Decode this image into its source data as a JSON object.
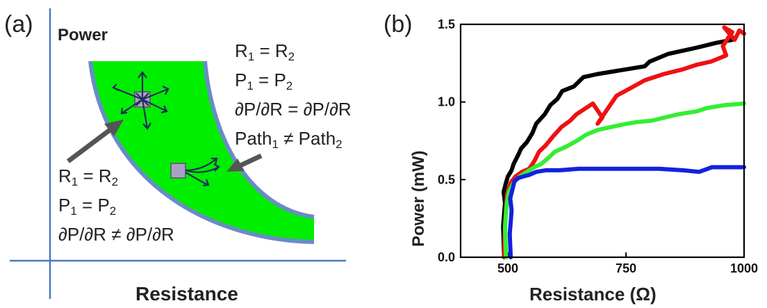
{
  "panel_a": {
    "label": "(a)",
    "ylabel": "Power",
    "xlabel": "Resistance",
    "colors": {
      "region": "#00ee00",
      "border": "#6a8cc4",
      "axis": "#4a78bf",
      "marker": "#a9a0c8",
      "arrow": "#1f2d5a",
      "pointer": "#555555"
    },
    "annotation_top": {
      "line1": "R",
      "sub1a": "1",
      "mid1": " = R",
      "sub1b": "2",
      "line2": "P",
      "sub2a": "1",
      "mid2": " = P",
      "sub2b": "2",
      "line3": "∂P/∂R = ∂P/∂R",
      "line4a": "Path",
      "sub4a": "1",
      "line4b": " ≠ Path",
      "sub4b": "2"
    },
    "annotation_bottom": {
      "line1": "R",
      "sub1a": "1",
      "mid1": " = R",
      "sub1b": "2",
      "line2": "P",
      "sub2a": "1",
      "mid2": " = P",
      "sub2b": "2",
      "line3": "∂P/∂R ≠ ∂P/∂R"
    }
  },
  "panel_b": {
    "label": "(b)",
    "ylabel": "Power (mW)",
    "xlabel": "Resistance (Ω)"
  },
  "chart_data": {
    "type": "line",
    "title": "",
    "xlabel": "Resistance (Ω)",
    "ylabel": "Power (mW)",
    "xlim": [
      400,
      1000
    ],
    "ylim": [
      0,
      1.5
    ],
    "xticks": [
      500,
      750,
      1000
    ],
    "yticks": [
      0.0,
      0.5,
      1.0,
      1.5
    ],
    "xtick_labels": [
      "500",
      "750",
      "1000"
    ],
    "ytick_labels": [
      "0.0",
      "0.5",
      "1.0",
      "1.5"
    ],
    "grid": false,
    "series": [
      {
        "color": "#000000",
        "x": [
          492,
          490,
          494,
          491,
          496,
          500,
          508,
          512,
          522,
          528,
          540,
          552,
          560,
          578,
          590,
          605,
          615,
          640,
          660,
          690,
          730,
          790,
          800,
          840,
          900,
          940,
          975
        ],
        "y": [
          0.0,
          0.2,
          0.35,
          0.42,
          0.48,
          0.52,
          0.56,
          0.6,
          0.66,
          0.7,
          0.74,
          0.8,
          0.86,
          0.92,
          0.98,
          1.02,
          1.07,
          1.1,
          1.16,
          1.18,
          1.2,
          1.23,
          1.26,
          1.31,
          1.35,
          1.38,
          1.4
        ]
      },
      {
        "color": "#ee1111",
        "x": [
          492,
          494,
          498,
          506,
          516,
          530,
          545,
          552,
          558,
          566,
          580,
          596,
          614,
          632,
          645,
          660,
          680,
          700,
          690,
          712,
          730,
          760,
          790,
          830,
          870,
          900,
          930,
          962,
          955,
          968,
          975,
          958,
          980,
          990,
          1000
        ],
        "y": [
          0.0,
          0.2,
          0.4,
          0.48,
          0.52,
          0.55,
          0.57,
          0.6,
          0.63,
          0.68,
          0.72,
          0.78,
          0.84,
          0.88,
          0.92,
          0.95,
          0.99,
          0.9,
          0.86,
          0.96,
          1.04,
          1.09,
          1.14,
          1.18,
          1.21,
          1.24,
          1.26,
          1.3,
          1.36,
          1.42,
          1.45,
          1.48,
          1.4,
          1.46,
          1.44
        ]
      },
      {
        "color": "#33ee33",
        "x": [
          496,
          494,
          498,
          502,
          512,
          525,
          540,
          556,
          570,
          582,
          600,
          622,
          646,
          666,
          690,
          720,
          752,
          772,
          805,
          832,
          860,
          900,
          920,
          960,
          1000
        ],
        "y": [
          0.0,
          0.2,
          0.35,
          0.42,
          0.48,
          0.52,
          0.55,
          0.58,
          0.6,
          0.63,
          0.68,
          0.71,
          0.75,
          0.79,
          0.82,
          0.84,
          0.86,
          0.87,
          0.88,
          0.9,
          0.92,
          0.94,
          0.96,
          0.98,
          0.99
        ]
      },
      {
        "color": "#1122dd",
        "x": [
          506,
          504,
          508,
          505,
          510,
          514,
          522,
          532,
          545,
          560,
          580,
          610,
          650,
          700,
          760,
          820,
          870,
          905,
          932,
          960,
          1000
        ],
        "y": [
          0.0,
          0.15,
          0.3,
          0.38,
          0.44,
          0.49,
          0.51,
          0.52,
          0.53,
          0.55,
          0.56,
          0.56,
          0.57,
          0.57,
          0.57,
          0.57,
          0.56,
          0.55,
          0.58,
          0.58,
          0.58
        ]
      }
    ]
  }
}
